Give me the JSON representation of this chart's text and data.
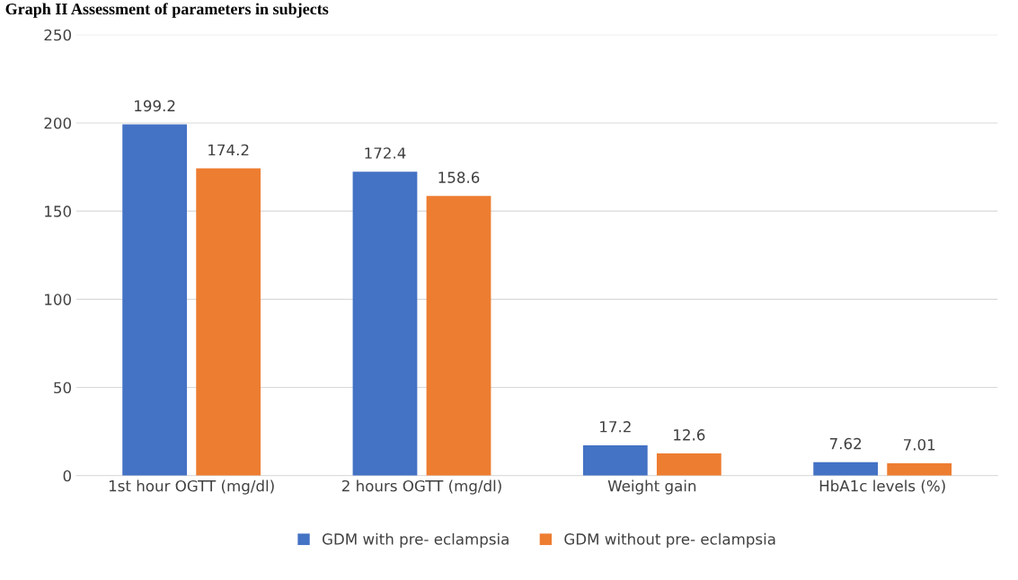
{
  "chart_data": {
    "type": "bar",
    "title": "Graph II Assessment of parameters in subjects",
    "categories": [
      "1st hour OGTT (mg/dl)",
      "2 hours OGTT (mg/dl)",
      "Weight gain",
      "HbA1c levels (%)"
    ],
    "series": [
      {
        "name": "GDM with pre- eclampsia",
        "color": "#4472c4",
        "values": [
          199.2,
          172.4,
          17.2,
          7.62
        ]
      },
      {
        "name": "GDM without pre- eclampsia",
        "color": "#ed7d31",
        "values": [
          174.2,
          158.6,
          12.6,
          7.01
        ]
      }
    ],
    "ylim": [
      0,
      250
    ],
    "yticks": [
      0,
      50,
      100,
      150,
      200,
      250
    ],
    "grid": "y",
    "legend": "bottom",
    "data_labels": true
  }
}
